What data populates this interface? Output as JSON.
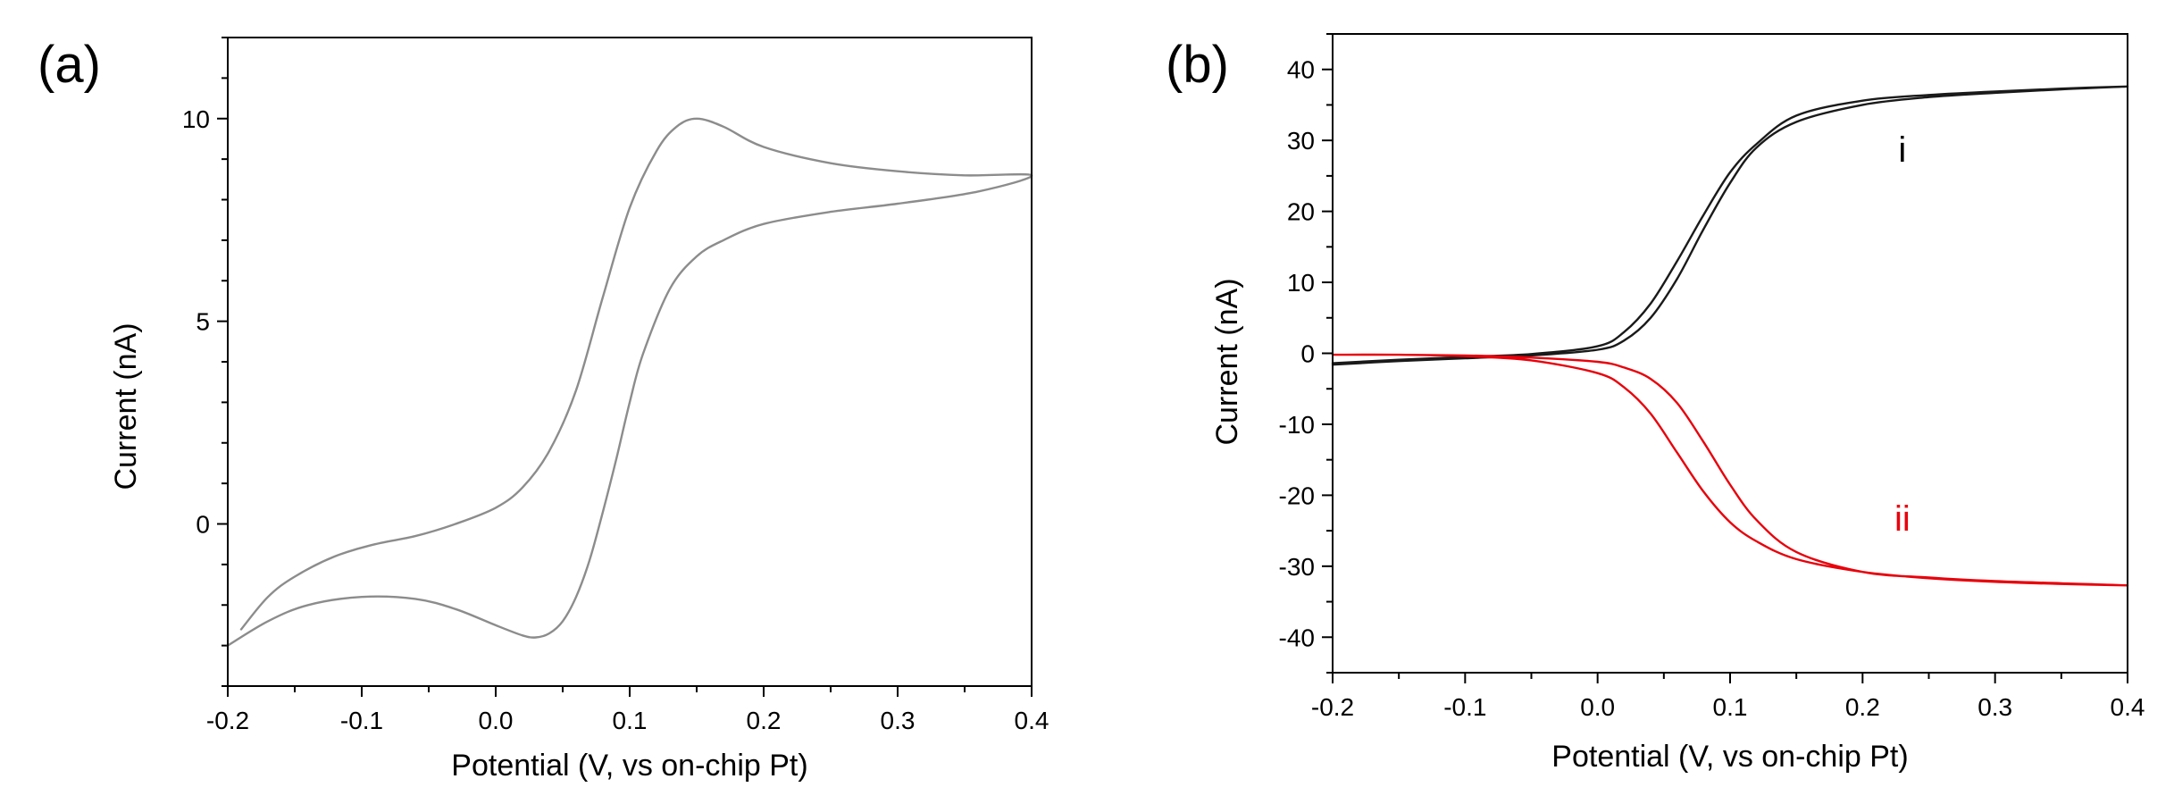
{
  "chart_data": [
    {
      "type": "line",
      "panel_label": "(a)",
      "xlabel": "Potential (V, vs on-chip Pt)",
      "ylabel": "Current (nA)",
      "xlim": [
        -0.2,
        0.4
      ],
      "ylim": [
        -4,
        12
      ],
      "x_ticks": [
        -0.2,
        -0.1,
        0.0,
        0.1,
        0.2,
        0.3,
        0.4
      ],
      "x_tick_labels": [
        "-0.2",
        "-0.1",
        "0.0",
        "0.1",
        "0.2",
        "0.3",
        "0.4"
      ],
      "y_ticks": [
        0,
        5,
        10
      ],
      "y_tick_labels": [
        "0",
        "5",
        "10"
      ],
      "y_minor_step": 1,
      "x_minor_step": 0.05,
      "series": [
        {
          "name": "cyclic voltammogram",
          "color": "#8c8c8c",
          "x": [
            -0.19,
            -0.17,
            -0.15,
            -0.12,
            -0.09,
            -0.06,
            -0.03,
            0.0,
            0.02,
            0.04,
            0.06,
            0.08,
            0.1,
            0.12,
            0.135,
            0.15,
            0.17,
            0.2,
            0.25,
            0.3,
            0.35,
            0.4,
            0.36,
            0.3,
            0.25,
            0.2,
            0.17,
            0.15,
            0.13,
            0.11,
            0.1,
            0.09,
            0.08,
            0.07,
            0.06,
            0.05,
            0.04,
            0.03,
            0.02,
            0.0,
            -0.03,
            -0.06,
            -0.1,
            -0.14,
            -0.17,
            -0.2
          ],
          "y": [
            -2.6,
            -1.8,
            -1.3,
            -0.8,
            -0.5,
            -0.3,
            0.0,
            0.4,
            0.9,
            1.8,
            3.3,
            5.6,
            7.8,
            9.2,
            9.8,
            10.0,
            9.8,
            9.3,
            8.9,
            8.7,
            8.6,
            8.6,
            8.2,
            7.9,
            7.7,
            7.4,
            7.0,
            6.6,
            5.8,
            4.2,
            3.0,
            1.6,
            0.3,
            -0.9,
            -1.8,
            -2.4,
            -2.7,
            -2.8,
            -2.75,
            -2.5,
            -2.1,
            -1.85,
            -1.8,
            -2.0,
            -2.4,
            -3.0
          ]
        }
      ]
    },
    {
      "type": "line",
      "panel_label": "(b)",
      "xlabel": "Potential (V, vs on-chip Pt)",
      "ylabel": "Current (nA)",
      "xlim": [
        -0.2,
        0.4
      ],
      "ylim": [
        -45,
        45
      ],
      "x_ticks": [
        -0.2,
        -0.1,
        0.0,
        0.1,
        0.2,
        0.3,
        0.4
      ],
      "x_tick_labels": [
        "-0.2",
        "-0.1",
        "0.0",
        "0.1",
        "0.2",
        "0.3",
        "0.4"
      ],
      "y_ticks": [
        -40,
        -30,
        -20,
        -10,
        0,
        10,
        20,
        30,
        40
      ],
      "y_tick_labels": [
        "-40",
        "-30",
        "-20",
        "-10",
        "0",
        "10",
        "20",
        "30",
        "40"
      ],
      "y_minor_step": 5,
      "x_minor_step": 0.05,
      "annotations": [
        {
          "text": "i",
          "x": 0.23,
          "y": 27,
          "color": "#000000"
        },
        {
          "text": "ii",
          "x": 0.23,
          "y": -25,
          "color": "#e8000b"
        }
      ],
      "series": [
        {
          "name": "i",
          "color": "#1a1a1a",
          "x": [
            -0.2,
            -0.15,
            -0.1,
            -0.05,
            0.0,
            0.02,
            0.04,
            0.06,
            0.08,
            0.1,
            0.12,
            0.15,
            0.2,
            0.25,
            0.3,
            0.35,
            0.4,
            0.35,
            0.3,
            0.25,
            0.2,
            0.15,
            0.12,
            0.1,
            0.08,
            0.06,
            0.04,
            0.02,
            0.0,
            -0.05,
            -0.1,
            -0.15,
            -0.2
          ],
          "y": [
            -1.6,
            -1.1,
            -0.7,
            -0.3,
            0.5,
            1.8,
            5.0,
            10.5,
            17.5,
            24.0,
            29.0,
            32.6,
            35.0,
            36.1,
            36.7,
            37.2,
            37.6,
            37.3,
            36.9,
            36.4,
            35.6,
            33.5,
            29.5,
            25.5,
            19.5,
            13.0,
            7.0,
            3.0,
            1.0,
            -0.1,
            -0.5,
            -0.9,
            -1.4
          ]
        },
        {
          "name": "ii",
          "color": "#e8000b",
          "x": [
            -0.2,
            -0.15,
            -0.1,
            -0.05,
            0.0,
            0.02,
            0.04,
            0.06,
            0.08,
            0.1,
            0.12,
            0.15,
            0.2,
            0.25,
            0.3,
            0.35,
            0.4,
            0.35,
            0.3,
            0.25,
            0.2,
            0.15,
            0.12,
            0.1,
            0.08,
            0.06,
            0.04,
            0.02,
            0.0,
            -0.05,
            -0.1,
            -0.15,
            -0.2
          ],
          "y": [
            -0.2,
            -0.2,
            -0.3,
            -0.6,
            -1.2,
            -2.0,
            -3.6,
            -7.0,
            -12.5,
            -18.5,
            -23.5,
            -28.0,
            -30.8,
            -31.6,
            -32.1,
            -32.4,
            -32.7,
            -32.5,
            -32.2,
            -31.7,
            -30.8,
            -29.0,
            -26.5,
            -23.8,
            -19.5,
            -14.0,
            -8.5,
            -4.8,
            -2.8,
            -1.0,
            -0.4,
            -0.2,
            -0.2
          ]
        }
      ]
    }
  ]
}
